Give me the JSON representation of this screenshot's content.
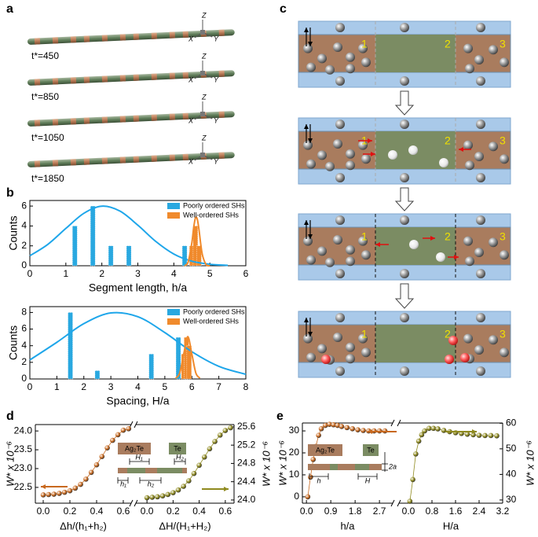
{
  "a": {
    "panel": "a",
    "times": [
      "t*=450",
      "t*=850",
      "t*=1050",
      "t*=1850"
    ],
    "axes": [
      "Z",
      "X",
      "Y"
    ]
  },
  "c": {
    "panel": "c",
    "region_labels": [
      "1",
      "2",
      "3"
    ]
  },
  "chart_data": [
    {
      "type": "bar",
      "panel": "b",
      "xlabel": "Segment length, h/a",
      "ylabel": "Counts",
      "xlim": [
        0,
        6
      ],
      "xticks": [
        0,
        1,
        2,
        3,
        4,
        5,
        6
      ],
      "ylim": [
        0,
        6.56
      ],
      "yticks": [
        0,
        2,
        4,
        6
      ],
      "legend": "upper right",
      "series": [
        {
          "name": "Poorly ordered SHs",
          "color": "#29a8e0",
          "x": [
            1.25,
            1.75,
            2.25,
            2.75,
            4.3
          ],
          "values": [
            4,
            6,
            2,
            2,
            2
          ]
        },
        {
          "name": "Well-ordered SHs",
          "color": "#f08a2c",
          "x": [
            4.5,
            4.6,
            4.7
          ],
          "values": [
            2,
            4,
            2
          ]
        }
      ],
      "fits": [
        {
          "color": "#1ea6ea",
          "x": [
            0,
            0.5,
            1,
            1.5,
            2,
            2.5,
            3,
            3.5,
            4,
            4.5,
            5,
            5.5
          ],
          "values": [
            1.0,
            2.15,
            3.75,
            5.27,
            5.99,
            5.5,
            4.08,
            2.44,
            1.18,
            0.46,
            0.15,
            0.04
          ]
        },
        {
          "color": "#f08a2c",
          "x": [
            4.3,
            4.4,
            4.5,
            4.55,
            4.6,
            4.65,
            4.7,
            4.75,
            4.8,
            4.9,
            5.0
          ],
          "values": [
            0,
            0.4,
            2.3,
            3.8,
            4.8,
            4.7,
            3.6,
            2.1,
            1.0,
            0.1,
            0
          ]
        }
      ]
    },
    {
      "type": "bar",
      "xlabel": "Spacing, H/a",
      "ylabel": "Counts",
      "xlim": [
        0,
        8
      ],
      "xticks": [
        0,
        1,
        2,
        3,
        4,
        5,
        6,
        7,
        8
      ],
      "ylim": [
        0,
        8.7
      ],
      "yticks": [
        0,
        2,
        4,
        6,
        8
      ],
      "legend": "upper right",
      "series": [
        {
          "name": "Poorly ordered SHs",
          "color": "#29a8e0",
          "x": [
            1.5,
            2.5,
            4.5,
            5.5
          ],
          "values": [
            8,
            1,
            3,
            5
          ]
        },
        {
          "name": "Well-ordered SHs",
          "color": "#f08a2c",
          "x": [
            5.7,
            5.8,
            5.9
          ],
          "values": [
            3,
            5,
            4
          ]
        }
      ],
      "fits": [
        {
          "color": "#1ea6ea",
          "x": [
            0,
            1,
            2,
            3,
            4,
            5,
            6,
            7,
            8
          ],
          "values": [
            2.29,
            4.41,
            6.65,
            7.94,
            7.49,
            5.58,
            3.28,
            1.52,
            0.56
          ]
        },
        {
          "color": "#f08a2c",
          "x": [
            5.4,
            5.55,
            5.7,
            5.85,
            6.0,
            6.15,
            6.3
          ],
          "values": [
            0.1,
            0.7,
            3.0,
            5.1,
            3.0,
            0.7,
            0.1
          ]
        }
      ]
    },
    {
      "type": "line",
      "panel": "d",
      "ylabel": "W* x 10⁻⁶",
      "y2label": "W* x 10⁻⁶",
      "xlabel": "Δh/(h₁+h₂)",
      "x2label": "ΔH/(H₁+H₂)",
      "xlim": [
        -0.059,
        0.659
      ],
      "xticks": [
        {
          "value": 0,
          "label": "0.0"
        },
        0.2,
        0.4,
        0.6
      ],
      "x2lim": [
        -0.085,
        0.667
      ],
      "x2ticks": [
        {
          "value": 0,
          "label": "0.0"
        },
        0.2,
        0.4,
        0.6
      ],
      "ylim": [
        22.08,
        24.17
      ],
      "yticks": [
        22.5,
        {
          "value": 23,
          "label": "23.0"
        },
        23.5,
        {
          "value": 24,
          "label": "24.0"
        }
      ],
      "y2lim": [
        23.93,
        25.65
      ],
      "y2ticks": [
        {
          "value": 24,
          "label": "24.0"
        },
        24.4,
        24.8,
        25.2,
        25.6
      ],
      "series": [
        {
          "color": "#c8691f",
          "x": [
            0,
            0.04,
            0.08,
            0.12,
            0.16,
            0.2,
            0.24,
            0.28,
            0.32,
            0.36,
            0.4,
            0.44,
            0.48,
            0.52,
            0.56,
            0.6,
            0.64
          ],
          "values": [
            22.3,
            22.31,
            22.32,
            22.34,
            22.37,
            22.41,
            22.48,
            22.58,
            22.72,
            22.9,
            23.1,
            23.32,
            23.55,
            23.75,
            23.9,
            24.02,
            24.06
          ]
        },
        {
          "color": "#8f8a1f",
          "axis": "y2",
          "xaxis": "x2",
          "x": [
            0,
            0.04,
            0.08,
            0.12,
            0.16,
            0.2,
            0.24,
            0.28,
            0.32,
            0.36,
            0.4,
            0.44,
            0.48,
            0.52,
            0.56,
            0.6,
            0.64
          ],
          "values": [
            24.05,
            24.06,
            24.07,
            24.09,
            24.12,
            24.16,
            24.22,
            24.3,
            24.42,
            24.58,
            24.76,
            24.94,
            25.12,
            25.28,
            25.42,
            25.52,
            25.58
          ]
        }
      ],
      "inset": {
        "labels": [
          "Ag₂Te",
          "Te",
          "H₁",
          "H₂",
          "h₁",
          "h₂"
        ]
      }
    },
    {
      "type": "line",
      "panel": "e",
      "ylabel": "W* x 10⁻⁶",
      "y2label": "W* x 10⁻⁶",
      "xlabel": "h/a",
      "x2label": "H/a",
      "xlim": [
        -0.15,
        3.19
      ],
      "xticks": [
        {
          "value": 0,
          "label": "0.0"
        },
        0.9,
        1.8,
        2.7
      ],
      "x2lim": [
        -0.32,
        3.2
      ],
      "x2ticks": [
        {
          "value": 0,
          "label": "0.0"
        },
        0.8,
        1.6,
        2.4,
        3.2
      ],
      "ylim": [
        -2.9,
        33.6
      ],
      "yticks": [
        0,
        10,
        20,
        30
      ],
      "y2lim": [
        28.75,
        60.1
      ],
      "y2ticks": [
        30,
        40,
        50,
        60
      ],
      "series": [
        {
          "color": "#c8691f",
          "x": [
            0.05,
            0.15,
            0.25,
            0.35,
            0.45,
            0.55,
            0.7,
            0.85,
            1.0,
            1.15,
            1.3,
            1.5,
            1.7,
            1.9,
            2.1,
            2.3,
            2.5,
            2.7,
            2.9
          ],
          "values": [
            0,
            9,
            17,
            23,
            28,
            31,
            32.5,
            33,
            32.8,
            32.5,
            32,
            31.5,
            31,
            30.5,
            30.2,
            30,
            30,
            30,
            30
          ]
        },
        {
          "color": "#8f8a1f",
          "axis": "y2",
          "xaxis": "x2",
          "x": [
            0.05,
            0.15,
            0.25,
            0.35,
            0.45,
            0.55,
            0.7,
            0.85,
            1.0,
            1.2,
            1.4,
            1.6,
            1.8,
            2.0,
            2.2,
            2.4,
            2.6,
            2.8,
            3.0
          ],
          "values": [
            29.5,
            38,
            48,
            53,
            55.5,
            57,
            58,
            58,
            57.8,
            57.2,
            56.7,
            56.3,
            56,
            55.7,
            55.5,
            55.3,
            55.2,
            55.2,
            55.1
          ]
        }
      ],
      "inset": {
        "labels": [
          "Ag₂Te",
          "Te",
          "h",
          "H",
          "2a"
        ]
      }
    }
  ]
}
